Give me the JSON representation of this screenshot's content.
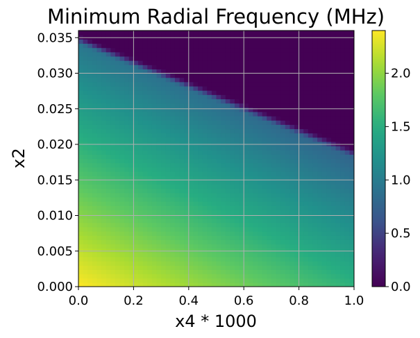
{
  "chart_data": {
    "type": "heatmap",
    "title": "Minimum Radial Frequency (MHz)",
    "xlabel": "x4 * 1000",
    "ylabel": "x2",
    "xlim": [
      0.0,
      1.0
    ],
    "ylim": [
      0.0,
      0.036
    ],
    "x_ticks": [
      "0.0",
      "0.2",
      "0.4",
      "0.6",
      "0.8",
      "1.0"
    ],
    "y_ticks": [
      "0.000",
      "0.005",
      "0.010",
      "0.015",
      "0.020",
      "0.025",
      "0.030",
      "0.035"
    ],
    "grid": true,
    "colormap": "viridis",
    "colorbar": {
      "range": [
        0.0,
        2.4
      ],
      "ticks": [
        "0.0",
        "0.5",
        "1.0",
        "1.5",
        "2.0"
      ]
    },
    "field": {
      "max_value": 2.4,
      "value_at_x4_1_x2_0": 1.55,
      "value_at_x4_0_x2_0.034": 0.95,
      "zero_boundary": [
        [
          0.0,
          0.0355
        ],
        [
          1.0,
          0.0195
        ]
      ],
      "transition_width": 0.0015
    }
  }
}
